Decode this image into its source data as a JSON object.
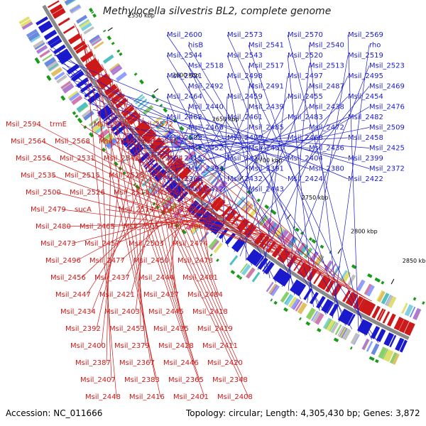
{
  "title": "Methylocella silvestris BL2, complete genome",
  "accession": "Accession: NC_011666",
  "summary": "Topology: circular; Length: 4,305,430 bp; Genes: 3,872",
  "colors": {
    "forward": "#1a1acc",
    "reverse": "#cc1a1a",
    "backbone": "#8a8a8a"
  },
  "ticks": [
    "2850 kbp",
    "2800 kbp",
    "2750 kbp",
    "2700 kbp",
    "2650 kbp",
    "2600 kbp",
    "2550 kbp"
  ],
  "blue_labels": [
    "Msil_2600",
    "Msil_2573",
    "Msil_2570",
    "Msil_2569",
    "hisB",
    "Msil_2541",
    "Msil_2540",
    "rho",
    "Msil_2544",
    "Msil_2543",
    "Msil_2520",
    "Msil_2519",
    "Msil_2518",
    "Msil_2517",
    "Msil_2513",
    "Msil_2523",
    "Msil_2521",
    "Msil_2498",
    "Msil_2497",
    "Msil_2495",
    "Msil_2492",
    "Msil_2491",
    "Msil_2487",
    "Msil_2469",
    "Msil_2464",
    "Msil_2459",
    "Msil_2455",
    "Msil_2454",
    "Msil_2440",
    "Msil_2439",
    "Msil_2438",
    "Msil_2476",
    "Msil_2462",
    "Msil_2461",
    "Msil_2483",
    "Msil_2482",
    "Msil_2466",
    "Msil_2485",
    "Msil_2472",
    "Msil_2509",
    "Msil_2508",
    "Msil_2499",
    "Msil_2468",
    "Msil_2458",
    "Msil_2452",
    "Msil_2451",
    "Msil_2436",
    "Msil_2425",
    "Msil_2415",
    "Msil_2410",
    "Msil_2404",
    "Msil_2399",
    "Msil_2393",
    "Msil_2391",
    "Msil_2380",
    "Msil_2372",
    "Msil_2368",
    "Msil_2432",
    "Msil_2424",
    "Msil_2422",
    "Msil_2412",
    "Msil_2443"
  ],
  "red_labels": [
    "Msil_2594",
    "trmE",
    "Msil_2582",
    "Msil_2572",
    "Msil_2564",
    "Msil_2568",
    "Msil_2546",
    "Msil_2545",
    "Msil_2556",
    "Msil_2531",
    "Msil_2542",
    "Msil_2524",
    "Msil_2535",
    "Msil_2515",
    "Msil_2525",
    "Msil_2506",
    "Msil_2500",
    "Msil_2526",
    "Msil_2511",
    "Msil_2488",
    "Msil_2479",
    "sucA",
    "Msil_2514",
    "Msil_2501",
    "Msil_2480",
    "Msil_2465",
    "Msil_2505",
    "Msil_2486",
    "Msil_2473",
    "Msil_2457",
    "Msil_2503",
    "Msil_2474",
    "Msil_2496",
    "Msil_2477",
    "Msil_2450",
    "Msil_2478",
    "Msil_2456",
    "Msil_2437",
    "Msil_2444",
    "Msil_2481",
    "Msil_2447",
    "Msil_2421",
    "Msil_2417",
    "Msil_2484",
    "Msil_2434",
    "Msil_2403",
    "Msil_2445",
    "Msil_2418",
    "Msil_2392",
    "Msil_2453",
    "Msil_2435",
    "Msil_2419",
    "Msil_2400",
    "Msil_2379",
    "Msil_2428",
    "Msil_2411",
    "Msil_2387",
    "Msil_2367",
    "Msil_2446",
    "Msil_2420",
    "Msil_2407",
    "Msil_2383",
    "Msil_2365",
    "Msil_2348",
    "Msil_2448",
    "Msil_2416",
    "Msil_2401",
    "Msil_2408"
  ]
}
